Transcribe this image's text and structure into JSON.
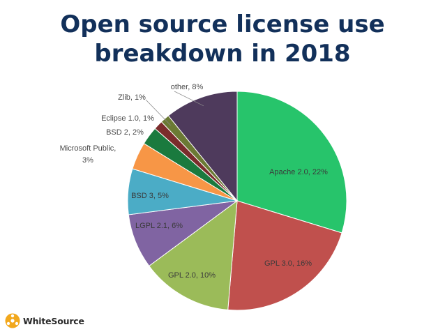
{
  "title_lines": [
    "Open source license use",
    "breakdown in 2018"
  ],
  "logo": {
    "text": "WhiteSource",
    "icon": "whitesource-logo-icon"
  },
  "chart_data": {
    "type": "pie",
    "title": "Open source license use breakdown in 2018",
    "start_angle_deg": 0,
    "direction": "clockwise",
    "slices": [
      {
        "name": "Apache 2.0",
        "value": 22,
        "label": "Apache 2.0, 22%",
        "color": "#27c46b"
      },
      {
        "name": "GPL 3.0",
        "value": 16,
        "label": "GPL 3.0, 16%",
        "color": "#c0504d"
      },
      {
        "name": "GPL 2.0",
        "value": 10,
        "label": "GPL 2.0, 10%",
        "color": "#9bbb59"
      },
      {
        "name": "LGPL 2.1",
        "value": 6,
        "label": "LGPL 2.1, 6%",
        "color": "#8064a2"
      },
      {
        "name": "BSD 3",
        "value": 5,
        "label": "BSD 3, 5%",
        "color": "#4bacc6"
      },
      {
        "name": "Microsoft Public",
        "value": 3,
        "label": [
          "Microsoft Public,",
          "3%"
        ],
        "color": "#f79646"
      },
      {
        "name": "BSD 2",
        "value": 2,
        "label": "BSD 2, 2%",
        "color": "#1a7a3e"
      },
      {
        "name": "Eclipse 1.0",
        "value": 1,
        "label": "Eclipse 1.0, 1%",
        "color": "#7b2c2c"
      },
      {
        "name": "Zlib",
        "value": 1,
        "label": "Zlib, 1%",
        "color": "#6b7a34"
      },
      {
        "name": "other",
        "value": 8,
        "label": "other, 8%",
        "color": "#4e3a5c"
      }
    ]
  }
}
